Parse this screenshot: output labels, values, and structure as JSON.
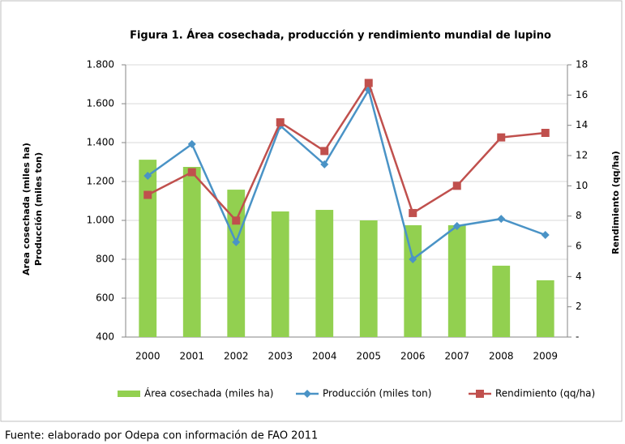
{
  "chart_data": {
    "type": "bar",
    "title": "Figura 1.  Área cosechada, producción y rendimiento mundial de lupino",
    "categories": [
      "2000",
      "2001",
      "2002",
      "2003",
      "2004",
      "2005",
      "2006",
      "2007",
      "2008",
      "2009"
    ],
    "series": [
      {
        "name": "Área cosechada (miles ha)",
        "type": "bar",
        "color": "#92d050",
        "values": [
          1312,
          1275,
          1158,
          1046,
          1054,
          1000,
          975,
          975,
          767,
          692
        ]
      },
      {
        "name": "Producción (miles ton)",
        "type": "line",
        "marker": "diamond",
        "color": "#4a93c6",
        "values": [
          1229,
          1392,
          888,
          1487,
          1288,
          1671,
          800,
          971,
          1008,
          925
        ]
      },
      {
        "name": "Rendimiento (qq/ha)",
        "type": "line",
        "marker": "square",
        "axis": "y2",
        "color": "#c0504d",
        "values": [
          9.4,
          10.9,
          7.7,
          14.2,
          12.3,
          16.8,
          8.2,
          10.0,
          13.2,
          13.5
        ]
      }
    ],
    "ylabel": [
      "Area cosechada  (miles ha)",
      "Producción (miles ton)"
    ],
    "y2label": "Rendimiento (qq/ha)",
    "ylim": [
      400,
      1800
    ],
    "yticks": [
      {
        "value": 400,
        "label": "400"
      },
      {
        "value": 600,
        "label": "600"
      },
      {
        "value": 800,
        "label": "800"
      },
      {
        "value": 1000,
        "label": "1.000"
      },
      {
        "value": 1200,
        "label": "1.200"
      },
      {
        "value": 1400,
        "label": "1.400"
      },
      {
        "value": 1600,
        "label": "1.600"
      },
      {
        "value": 1800,
        "label": "1.800"
      }
    ],
    "y2lim": [
      0,
      18
    ],
    "y2ticks": [
      {
        "value": 0,
        "label": "-"
      },
      2,
      4,
      6,
      8,
      10,
      12,
      14,
      16,
      18
    ],
    "grid": true,
    "legend": "bottom",
    "source": "Fuente: elaborado por Odepa con información de FAO 2011"
  }
}
